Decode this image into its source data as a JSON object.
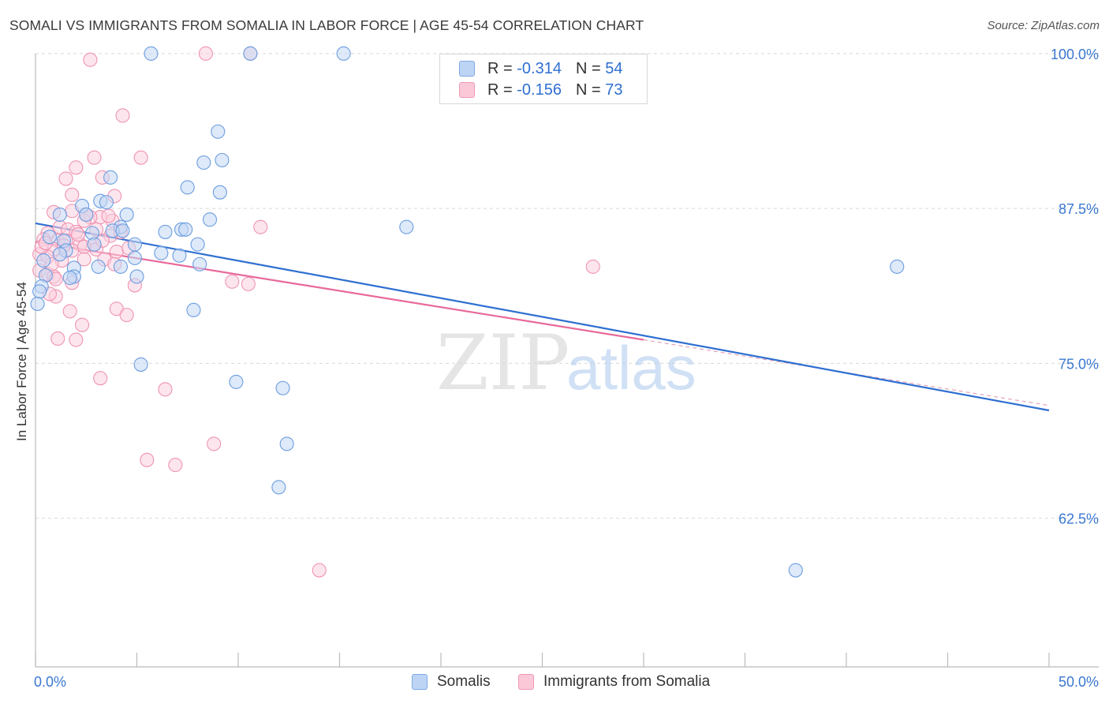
{
  "title": "SOMALI VS IMMIGRANTS FROM SOMALIA IN LABOR FORCE | AGE 45-54 CORRELATION CHART",
  "source": "Source: ZipAtlas.com",
  "colors": {
    "blue": "#6b9de0",
    "blue_fill": "#c2d7f4",
    "blue_line": "#2e6fd1",
    "pink": "#ef94b2",
    "pink_fill": "#fbd0de",
    "pink_line": "#e8699a",
    "tick_label": "#3a78d0"
  },
  "legend": {
    "rows": [
      {
        "r_label": "R =",
        "r_value": "-0.314",
        "n_label": "N =",
        "n_value": "54"
      },
      {
        "r_label": "R =",
        "r_value": "-0.156",
        "n_label": "N =",
        "n_value": "73"
      }
    ]
  },
  "chart_data": {
    "type": "scatter",
    "xlabel": "",
    "ylabel": "In Labor Force | Age 45-54",
    "xlim": [
      0,
      50
    ],
    "ylim": [
      50.5,
      100.5
    ],
    "x_tick_labels": [
      "0.0%",
      "50.0%"
    ],
    "y_ticks": [
      62.5,
      75.0,
      87.5,
      100.0
    ],
    "y_tick_labels": [
      "62.5%",
      "75.0%",
      "87.5%",
      "100.0%"
    ],
    "watermark": {
      "part1": "ZIP",
      "part2": "atlas"
    },
    "series": [
      {
        "name": "Somalis",
        "r": -0.314,
        "n": 54,
        "trend": {
          "x0": 0,
          "y0": 86.3,
          "x1": 50,
          "y1": 71.2
        },
        "points": [
          [
            5.7,
            100.0
          ],
          [
            10.6,
            100.0
          ],
          [
            15.2,
            100.0
          ],
          [
            9.0,
            93.7
          ],
          [
            8.3,
            91.2
          ],
          [
            9.2,
            91.4
          ],
          [
            7.5,
            89.2
          ],
          [
            9.1,
            88.8
          ],
          [
            3.7,
            90.0
          ],
          [
            3.2,
            88.1
          ],
          [
            3.5,
            88.0
          ],
          [
            2.3,
            87.7
          ],
          [
            1.2,
            87.0
          ],
          [
            2.5,
            87.0
          ],
          [
            4.5,
            87.0
          ],
          [
            8.6,
            86.6
          ],
          [
            4.2,
            86.0
          ],
          [
            3.8,
            85.7
          ],
          [
            4.3,
            85.7
          ],
          [
            6.4,
            85.6
          ],
          [
            7.2,
            85.8
          ],
          [
            7.4,
            85.8
          ],
          [
            2.8,
            85.5
          ],
          [
            1.4,
            84.9
          ],
          [
            0.7,
            85.2
          ],
          [
            4.9,
            84.6
          ],
          [
            8.0,
            84.6
          ],
          [
            2.9,
            84.6
          ],
          [
            1.5,
            84.1
          ],
          [
            1.2,
            83.8
          ],
          [
            6.2,
            83.9
          ],
          [
            7.1,
            83.7
          ],
          [
            4.9,
            83.5
          ],
          [
            3.1,
            82.8
          ],
          [
            4.2,
            82.8
          ],
          [
            8.1,
            83.0
          ],
          [
            1.9,
            82.7
          ],
          [
            0.5,
            82.1
          ],
          [
            1.9,
            82.0
          ],
          [
            1.7,
            81.9
          ],
          [
            5.0,
            82.0
          ],
          [
            18.3,
            86.0
          ],
          [
            0.3,
            81.2
          ],
          [
            0.2,
            80.8
          ],
          [
            7.8,
            79.3
          ],
          [
            5.2,
            74.9
          ],
          [
            9.9,
            73.5
          ],
          [
            12.2,
            73.0
          ],
          [
            12.4,
            68.5
          ],
          [
            12.0,
            65.0
          ],
          [
            42.5,
            82.8
          ],
          [
            37.5,
            58.3
          ],
          [
            0.1,
            79.8
          ],
          [
            0.4,
            83.3
          ]
        ]
      },
      {
        "name": "Immigrants from Somalia",
        "r": -0.156,
        "n": 73,
        "trend": {
          "x0": 0,
          "y0": 84.8,
          "x1": 30,
          "y1": 76.9,
          "dash_x1": 50,
          "dash_y1": 71.6
        },
        "points": [
          [
            10.6,
            100.0
          ],
          [
            8.4,
            100.0
          ],
          [
            2.7,
            99.5
          ],
          [
            4.3,
            95.0
          ],
          [
            2.9,
            91.6
          ],
          [
            5.2,
            91.6
          ],
          [
            2.0,
            90.8
          ],
          [
            1.5,
            89.9
          ],
          [
            3.3,
            90.0
          ],
          [
            3.9,
            88.5
          ],
          [
            1.8,
            88.6
          ],
          [
            0.9,
            87.2
          ],
          [
            1.8,
            87.3
          ],
          [
            3.2,
            86.8
          ],
          [
            2.7,
            86.8
          ],
          [
            3.8,
            86.5
          ],
          [
            2.4,
            86.5
          ],
          [
            1.2,
            86.0
          ],
          [
            1.6,
            85.8
          ],
          [
            3.0,
            85.8
          ],
          [
            3.7,
            85.3
          ],
          [
            2.0,
            85.6
          ],
          [
            0.6,
            85.5
          ],
          [
            0.4,
            85.0
          ],
          [
            1.1,
            84.9
          ],
          [
            1.5,
            84.9
          ],
          [
            2.2,
            84.6
          ],
          [
            2.9,
            84.6
          ],
          [
            2.4,
            84.4
          ],
          [
            0.9,
            84.2
          ],
          [
            1.8,
            84.1
          ],
          [
            3.0,
            84.2
          ],
          [
            4.0,
            84.0
          ],
          [
            4.6,
            84.3
          ],
          [
            0.2,
            83.8
          ],
          [
            0.6,
            83.6
          ],
          [
            1.3,
            83.3
          ],
          [
            2.4,
            83.4
          ],
          [
            3.4,
            83.4
          ],
          [
            3.9,
            83.0
          ],
          [
            0.2,
            82.5
          ],
          [
            0.6,
            82.2
          ],
          [
            0.9,
            82.0
          ],
          [
            1.0,
            81.8
          ],
          [
            1.8,
            81.5
          ],
          [
            4.9,
            81.3
          ],
          [
            9.7,
            81.6
          ],
          [
            10.5,
            81.4
          ],
          [
            1.0,
            80.4
          ],
          [
            0.7,
            80.6
          ],
          [
            11.1,
            86.0
          ],
          [
            27.5,
            82.8
          ],
          [
            1.7,
            79.2
          ],
          [
            4.0,
            79.4
          ],
          [
            4.5,
            78.9
          ],
          [
            2.3,
            78.1
          ],
          [
            1.1,
            77.0
          ],
          [
            2.0,
            76.9
          ],
          [
            3.2,
            73.8
          ],
          [
            6.4,
            72.9
          ],
          [
            8.8,
            68.5
          ],
          [
            5.5,
            67.2
          ],
          [
            6.9,
            66.8
          ],
          [
            14.0,
            58.3
          ],
          [
            0.3,
            84.4
          ],
          [
            0.5,
            84.7
          ],
          [
            1.4,
            84.5
          ],
          [
            2.5,
            87.0
          ],
          [
            3.6,
            86.9
          ],
          [
            4.2,
            85.6
          ],
          [
            0.8,
            83.0
          ],
          [
            2.1,
            85.4
          ],
          [
            3.3,
            84.9
          ]
        ]
      }
    ]
  }
}
